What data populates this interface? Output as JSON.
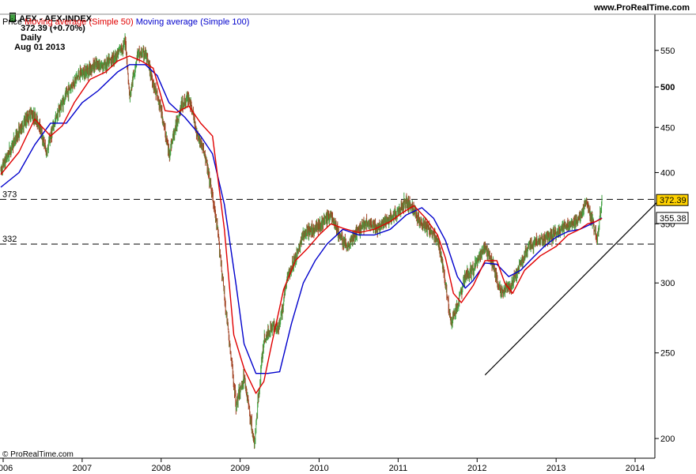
{
  "header": {
    "ticker": "AEX - AEX-INDEX",
    "last": "372.39 (+0.70%)",
    "period": "Daily",
    "date": "Aug 01 2013",
    "site": "www.ProRealTime.com"
  },
  "legend": {
    "price": "Price",
    "ma50": "Moving average (Simple 50)",
    "ma100": "Moving average (Simple 100)"
  },
  "copyright": "© ProRealTime.com",
  "colors": {
    "ma50": "#e00000",
    "ma100": "#0000cc",
    "candle_up": "#40a040",
    "candle_down": "#a04020",
    "tag_fill": "#ffd200",
    "trend": "#000000"
  },
  "chart_data": {
    "type": "line",
    "scale": "log",
    "ylim": [
      190,
      580
    ],
    "xlim": [
      2005.96,
      2014.25
    ],
    "y_ticks": [
      200,
      250,
      300,
      350,
      400,
      450,
      500,
      550
    ],
    "y_tick_labels": [
      "200",
      "250",
      "300",
      "350",
      "400",
      "450",
      "500",
      "550"
    ],
    "x_ticks": [
      2006,
      2007,
      2008,
      2009,
      2010,
      2011,
      2012,
      2013,
      2014
    ],
    "x_tick_labels": [
      "2006",
      "2007",
      "2008",
      "2009",
      "2010",
      "2011",
      "2012",
      "2013",
      "2014"
    ],
    "levels": [
      {
        "label": "373",
        "value": 373
      },
      {
        "label": "332",
        "value": 332
      }
    ],
    "price_tags": [
      {
        "label": "372.39",
        "value": 372.39,
        "style": "highlight"
      },
      {
        "label": "355.38",
        "value": 355.38,
        "style": "plain"
      }
    ],
    "trendline": {
      "x": [
        2012.1,
        2014.3
      ],
      "y": [
        236,
        372
      ]
    },
    "price": {
      "x": [
        2005.97,
        2006.2,
        2006.35,
        2006.45,
        2006.55,
        2006.6,
        2006.7,
        2006.85,
        2006.95,
        2007.15,
        2007.3,
        2007.45,
        2007.55,
        2007.6,
        2007.7,
        2007.8,
        2007.9,
        2008.0,
        2008.1,
        2008.25,
        2008.35,
        2008.45,
        2008.55,
        2008.65,
        2008.72,
        2008.8,
        2008.88,
        2008.95,
        2009.05,
        2009.18,
        2009.3,
        2009.4,
        2009.5,
        2009.6,
        2009.7,
        2009.8,
        2009.95,
        2010.05,
        2010.15,
        2010.25,
        2010.35,
        2010.45,
        2010.6,
        2010.75,
        2010.9,
        2011.0,
        2011.1,
        2011.2,
        2011.3,
        2011.4,
        2011.5,
        2011.6,
        2011.67,
        2011.75,
        2011.85,
        2011.95,
        2012.1,
        2012.2,
        2012.3,
        2012.45,
        2012.55,
        2012.65,
        2012.8,
        2012.95,
        2013.05,
        2013.2,
        2013.3,
        2013.38,
        2013.45,
        2013.52,
        2013.58
      ],
      "y": [
        402,
        445,
        468,
        455,
        420,
        440,
        470,
        500,
        515,
        528,
        530,
        545,
        562,
        485,
        545,
        545,
        505,
        470,
        420,
        475,
        487,
        445,
        420,
        375,
        340,
        290,
        248,
        218,
        235,
        196,
        258,
        268,
        268,
        305,
        320,
        340,
        346,
        352,
        358,
        340,
        330,
        340,
        352,
        345,
        356,
        360,
        372,
        362,
        350,
        345,
        335,
        300,
        270,
        282,
        305,
        310,
        330,
        315,
        292,
        300,
        315,
        330,
        335,
        340,
        345,
        350,
        355,
        370,
        355,
        335,
        372.39
      ]
    },
    "ma50": {
      "x": [
        2005.97,
        2006.2,
        2006.4,
        2006.6,
        2006.75,
        2006.9,
        2007.1,
        2007.3,
        2007.45,
        2007.6,
        2007.75,
        2007.9,
        2008.05,
        2008.2,
        2008.35,
        2008.5,
        2008.65,
        2008.8,
        2008.92,
        2009.05,
        2009.2,
        2009.3,
        2009.4,
        2009.55,
        2009.7,
        2009.85,
        2010.0,
        2010.15,
        2010.3,
        2010.5,
        2010.7,
        2010.9,
        2011.05,
        2011.2,
        2011.35,
        2011.5,
        2011.6,
        2011.7,
        2011.8,
        2011.95,
        2012.1,
        2012.25,
        2012.35,
        2012.45,
        2012.6,
        2012.8,
        2013.0,
        2013.15,
        2013.3,
        2013.4,
        2013.5,
        2013.58
      ],
      "y": [
        398,
        422,
        460,
        440,
        452,
        480,
        510,
        520,
        535,
        542,
        535,
        525,
        470,
        468,
        476,
        455,
        440,
        345,
        262,
        240,
        225,
        232,
        256,
        295,
        318,
        328,
        340,
        350,
        346,
        342,
        345,
        352,
        360,
        367,
        355,
        340,
        320,
        292,
        285,
        298,
        318,
        318,
        300,
        292,
        310,
        322,
        330,
        340,
        345,
        350,
        352,
        355
      ]
    },
    "ma100": {
      "x": [
        2005.97,
        2006.2,
        2006.4,
        2006.6,
        2006.8,
        2007.0,
        2007.2,
        2007.45,
        2007.6,
        2007.8,
        2007.95,
        2008.1,
        2008.3,
        2008.5,
        2008.65,
        2008.8,
        2008.95,
        2009.05,
        2009.2,
        2009.35,
        2009.5,
        2009.65,
        2009.8,
        2009.95,
        2010.1,
        2010.3,
        2010.5,
        2010.7,
        2010.9,
        2011.1,
        2011.3,
        2011.45,
        2011.6,
        2011.75,
        2011.85,
        2011.95,
        2012.1,
        2012.25,
        2012.4,
        2012.55,
        2012.7,
        2012.85,
        2013.0,
        2013.15,
        2013.3,
        2013.45,
        2013.58
      ],
      "y": [
        385,
        400,
        430,
        455,
        455,
        480,
        495,
        520,
        530,
        530,
        515,
        480,
        462,
        440,
        420,
        368,
        298,
        256,
        237,
        237,
        238,
        270,
        300,
        318,
        332,
        345,
        340,
        340,
        345,
        358,
        365,
        355,
        335,
        305,
        296,
        302,
        316,
        315,
        305,
        310,
        320,
        330,
        338,
        343,
        345,
        350,
        355.38
      ]
    },
    "ma100_last": 355.38
  }
}
